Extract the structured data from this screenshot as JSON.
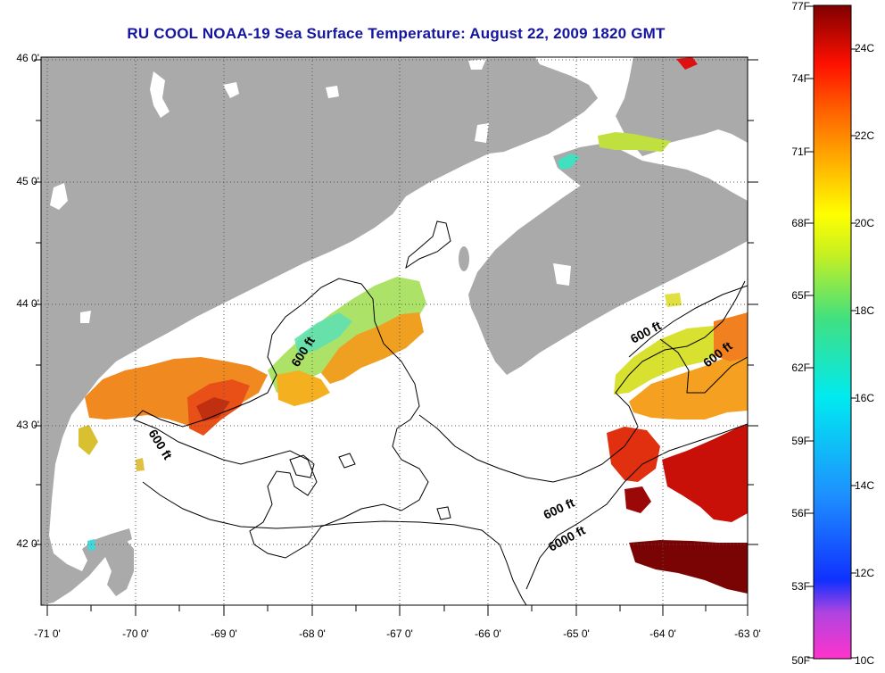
{
  "title": "RU COOL  NOAA-19  Sea Surface Temperature:  August 22, 2009 1820 GMT",
  "lat_labels": [
    "46 0'",
    "45 0'",
    "44 0'",
    "43 0'",
    "42 0'"
  ],
  "lon_labels": [
    "-71 0'",
    "-70 0'",
    "-69 0'",
    "-68 0'",
    "-67 0'",
    "-66 0'",
    "-65 0'",
    "-64 0'",
    "-63 0'"
  ],
  "contour_labels": {
    "c600_gulf_west": "600 ft",
    "c600_gulf_center": "600 ft",
    "c600_shelf": "600 ft",
    "c600_scotian_a": "600 ft",
    "c600_scotian_b": "600 ft",
    "c6000": "6000 ft"
  },
  "colorbar": {
    "fahrenheit": [
      "77F",
      "74F",
      "71F",
      "68F",
      "65F",
      "62F",
      "59F",
      "56F",
      "53F",
      "50F"
    ],
    "celsius": [
      "24C",
      "22C",
      "20C",
      "18C",
      "16C",
      "14C",
      "12C",
      "10C"
    ]
  },
  "colors": {
    "land": "#aaaaaa",
    "ocean_no_data": "#ffffff",
    "title": "#1515a0",
    "colorbar_stops": [
      "#ff33cc",
      "#b044e0",
      "#1030ff",
      "#1e90ff",
      "#00eaf0",
      "#40e080",
      "#c8f020",
      "#ffff00",
      "#ffb000",
      "#ff6000",
      "#ff1000",
      "#a00000",
      "#800000"
    ]
  }
}
